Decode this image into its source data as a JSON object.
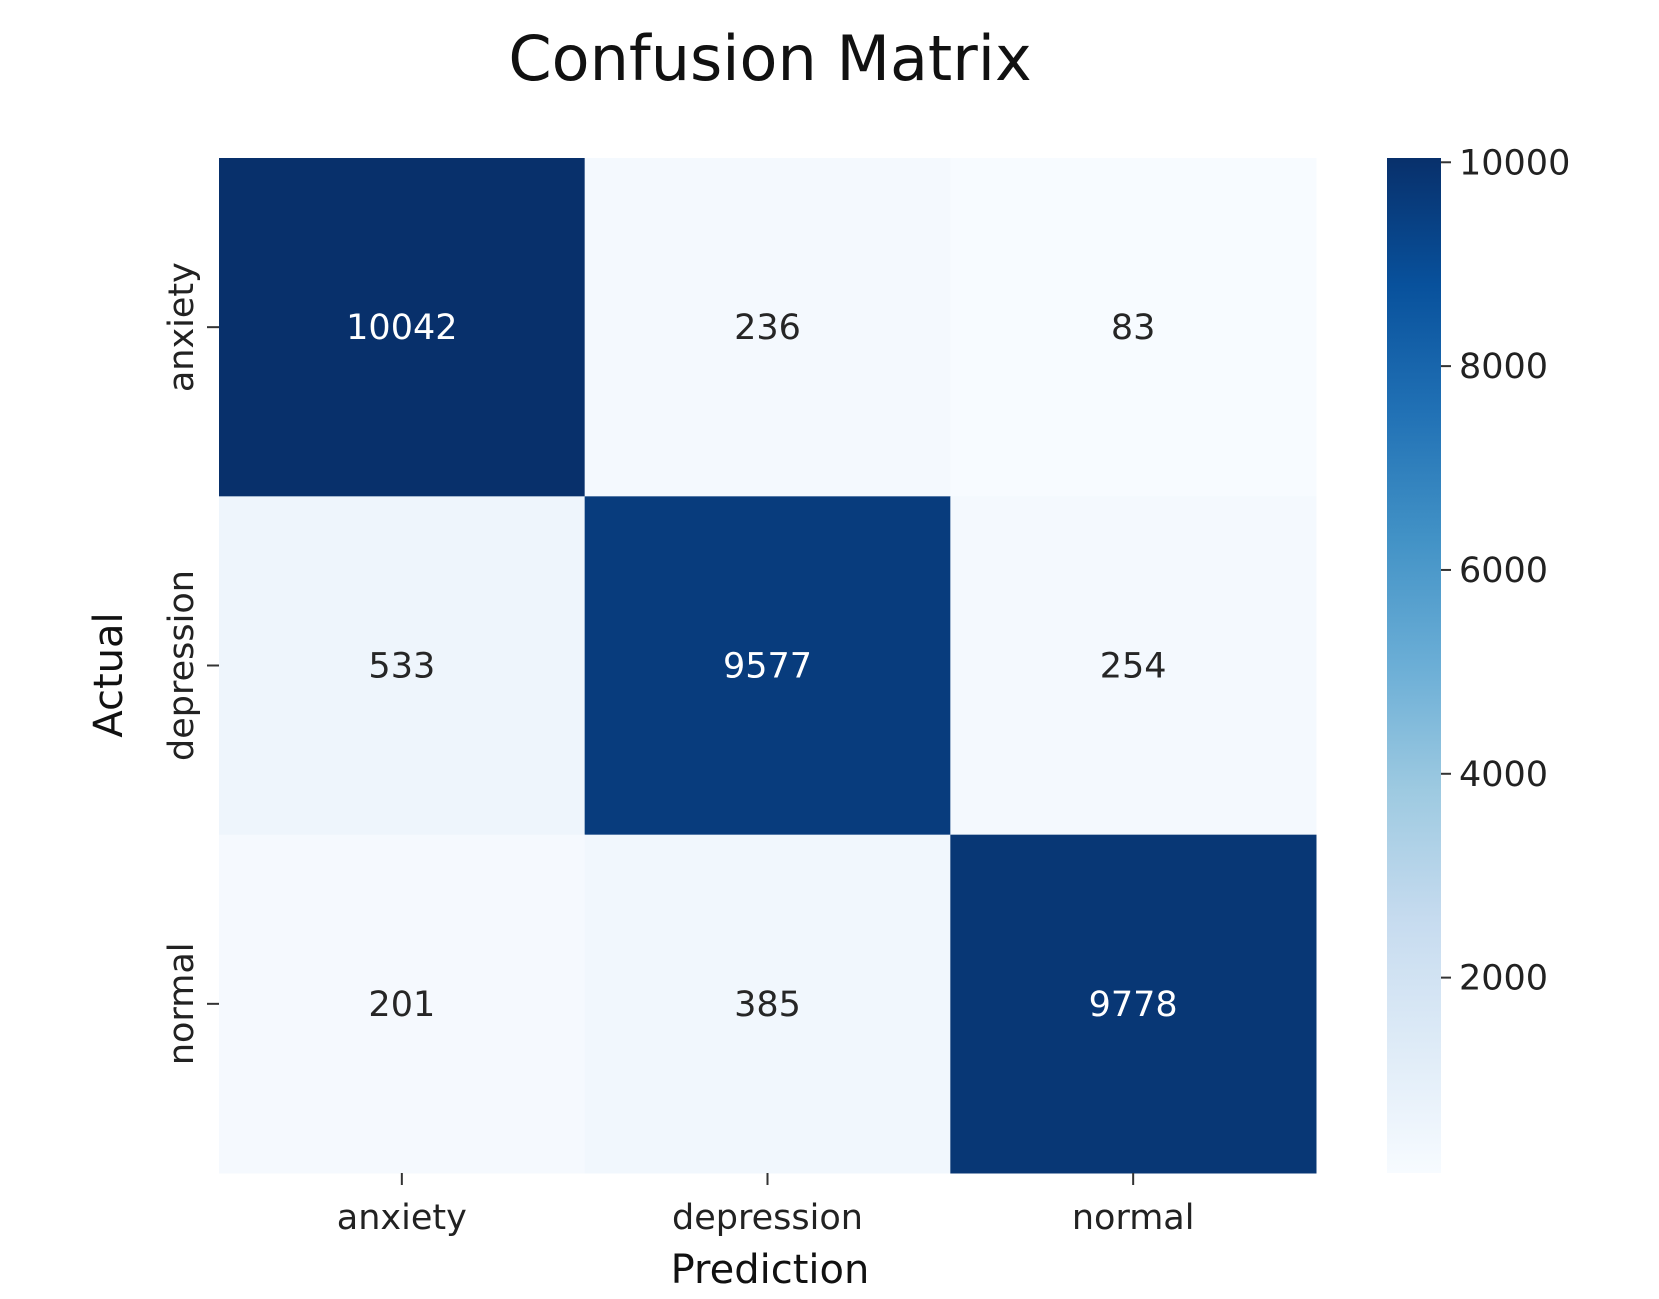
{
  "chart_data": {
    "type": "heatmap",
    "title": "Confusion Matrix",
    "xlabel": "Prediction",
    "ylabel": "Actual",
    "x_categories": [
      "anxiety",
      "depression",
      "normal"
    ],
    "y_categories": [
      "anxiety",
      "depression",
      "normal"
    ],
    "values": [
      [
        10042,
        236,
        83
      ],
      [
        533,
        9577,
        254
      ],
      [
        201,
        385,
        9778
      ]
    ],
    "colormap": "Blues",
    "color_low": "#f7fbff",
    "color_high": "#08306b",
    "colorbar": {
      "range": [
        83,
        10042
      ],
      "ticks": [
        2000,
        4000,
        6000,
        8000,
        10000
      ],
      "tick_labels": [
        "2000",
        "4000",
        "6000",
        "8000",
        "10000"
      ],
      "placement": "right"
    },
    "annotation_color_dark_cells": "#ffffff",
    "annotation_color_light_cells": "#262626"
  }
}
